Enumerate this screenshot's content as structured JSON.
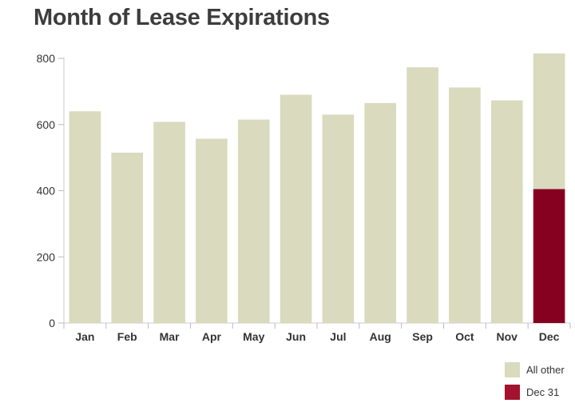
{
  "chart_data": {
    "type": "bar",
    "stacked": true,
    "title": "Month of Lease Expirations",
    "categories": [
      "Jan",
      "Feb",
      "Mar",
      "Apr",
      "May",
      "Jun",
      "Jul",
      "Aug",
      "Sep",
      "Oct",
      "Nov",
      "Dec"
    ],
    "series": [
      {
        "name": "All other",
        "color": "#d9dabe",
        "values": [
          640,
          515,
          608,
          557,
          615,
          690,
          630,
          665,
          773,
          712,
          673,
          410
        ]
      },
      {
        "name": "Dec 31",
        "color": "#860020",
        "values": [
          0,
          0,
          0,
          0,
          0,
          0,
          0,
          0,
          0,
          0,
          0,
          405
        ]
      }
    ],
    "ylim": [
      0,
      800
    ],
    "yticks": [
      0,
      200,
      400,
      600,
      800
    ],
    "xlabel": "",
    "ylabel": "",
    "grid": false,
    "legend_position": "bottom-right"
  }
}
